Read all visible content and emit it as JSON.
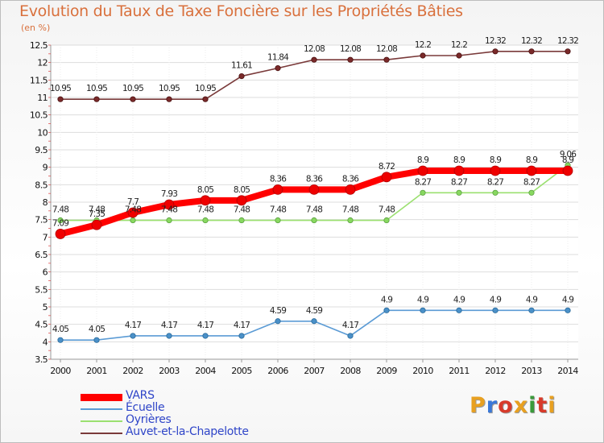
{
  "header": {
    "title": "Evolution du Taux de Taxe Foncière sur les Propriétés Bâties",
    "subtitle": "(en %)"
  },
  "brand": {
    "text": "Proxiti",
    "colors": [
      "#e8a020",
      "#3a78d8",
      "#d83a2a",
      "#e8a020",
      "#3a9a3a",
      "#d83a2a",
      "#e8a020"
    ]
  },
  "chart_data": {
    "type": "line",
    "x": [
      2000,
      2001,
      2002,
      2003,
      2004,
      2005,
      2006,
      2007,
      2008,
      2009,
      2010,
      2011,
      2012,
      2013,
      2014
    ],
    "ylim": [
      3.5,
      12.5
    ],
    "yticks": [
      3.5,
      4,
      4.5,
      5,
      5.5,
      6,
      6.5,
      7,
      7.5,
      8,
      8.5,
      9,
      9.5,
      10,
      10.5,
      11,
      11.5,
      12,
      12.5
    ],
    "grid": "horizontal",
    "legend": "bottom-left",
    "series": [
      {
        "name": "VARS",
        "color": "#ff0000",
        "values": [
          7.09,
          7.35,
          7.7,
          7.93,
          8.05,
          8.05,
          8.36,
          8.36,
          8.36,
          8.72,
          8.9,
          8.9,
          8.9,
          8.9,
          8.9
        ],
        "labels": [
          "7.09",
          "7.35",
          "7.7",
          "7.93",
          "8.05",
          "8.05",
          "8.36",
          "8.36",
          "8.36",
          "8.72",
          "8.9",
          "8.9",
          "8.9",
          "8.9",
          "8.9"
        ]
      },
      {
        "name": "Écuelle",
        "color": "#4a90c8",
        "values": [
          4.05,
          4.05,
          4.17,
          4.17,
          4.17,
          4.17,
          4.59,
          4.59,
          4.17,
          4.9,
          4.9,
          4.9,
          4.9,
          4.9,
          4.9
        ],
        "labels": [
          "4.05",
          "4.05",
          "4.17",
          "4.17",
          "4.17",
          "4.17",
          "4.59",
          "4.59",
          "4.17",
          "4.9",
          "4.9",
          "4.9",
          "4.9",
          "4.9",
          "4.9"
        ]
      },
      {
        "name": "Oyrières",
        "color": "#88d860",
        "values": [
          7.48,
          7.48,
          7.48,
          7.48,
          7.48,
          7.48,
          7.48,
          7.48,
          7.48,
          7.48,
          8.27,
          8.27,
          8.27,
          8.27,
          9.06
        ],
        "labels": [
          "7.48",
          "7.48",
          "7.48",
          "7.48",
          "7.48",
          "7.48",
          "7.48",
          "7.48",
          "7.48",
          "7.48",
          "8.27",
          "8.27",
          "8.27",
          "8.27",
          "9.06"
        ]
      },
      {
        "name": "Auvet-et-la-Chapelotte",
        "color": "#7a2a2a",
        "values": [
          10.95,
          10.95,
          10.95,
          10.95,
          10.95,
          11.61,
          11.84,
          12.08,
          12.08,
          12.08,
          12.2,
          12.2,
          12.32,
          12.32,
          12.32
        ],
        "labels": [
          "10.95",
          "10.95",
          "10.95",
          "10.95",
          "10.95",
          "11.61",
          "11.84",
          "12.08",
          "12.08",
          "12.08",
          "12.2",
          "12.2",
          "12.32",
          "12.32",
          "12.32"
        ]
      }
    ]
  }
}
